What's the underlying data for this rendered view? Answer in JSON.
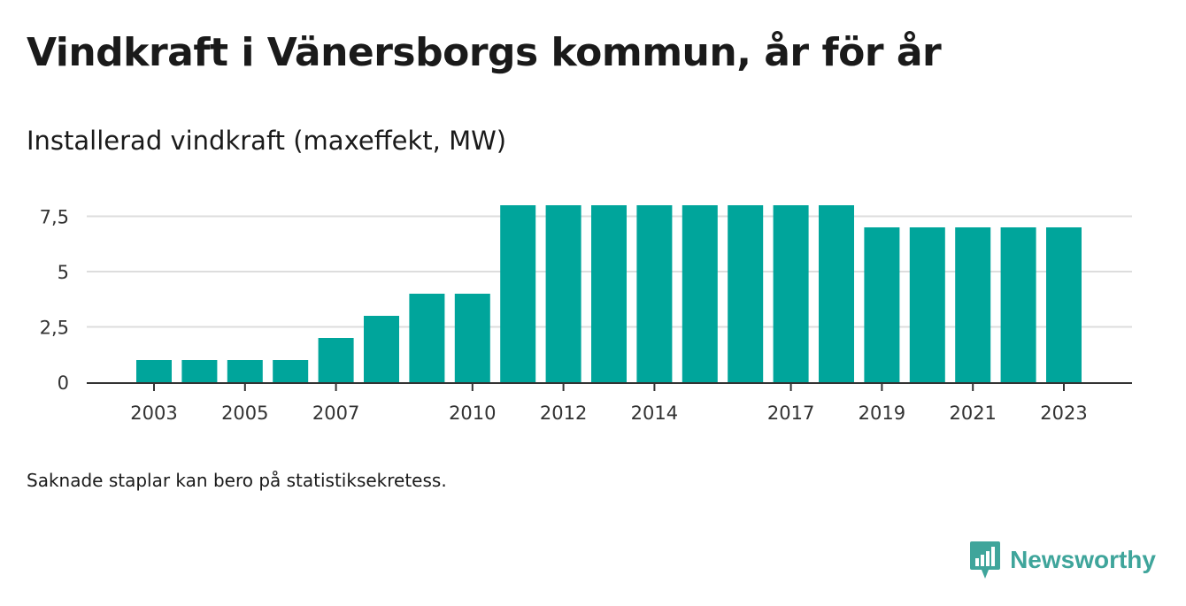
{
  "header": {
    "title": "Vindkraft i Vänersborgs kommun, år för år",
    "subtitle": "Installerad vindkraft (maxeffekt, MW)"
  },
  "footer": {
    "note": "Saknade staplar kan bero på statistiksekretess.",
    "brand": "Newsworthy"
  },
  "colors": {
    "bar": "#00a59b",
    "grid": "#dddddd",
    "axis": "#333333",
    "brand": "#3fa59b"
  },
  "chart_data": {
    "type": "bar",
    "categories": [
      "2003",
      "2004",
      "2005",
      "2006",
      "2007",
      "2008",
      "2009",
      "2010",
      "2011",
      "2012",
      "2013",
      "2014",
      "2015",
      "2016",
      "2017",
      "2018",
      "2019",
      "2020",
      "2021",
      "2022",
      "2023"
    ],
    "values": [
      1,
      1,
      1,
      1,
      2,
      3,
      4,
      4,
      8,
      8,
      8,
      8,
      8,
      8,
      8,
      8,
      7,
      7,
      7,
      7,
      7
    ],
    "x_tick_labels": [
      "2003",
      "2005",
      "2007",
      "2010",
      "2012",
      "2014",
      "2017",
      "2019",
      "2021",
      "2023"
    ],
    "y_ticks": [
      0,
      2.5,
      5,
      7.5
    ],
    "y_tick_labels": [
      "0",
      "2,5",
      "5",
      "7,5"
    ],
    "ylim": [
      0,
      8
    ],
    "grid": true,
    "xlabel": "",
    "ylabel": ""
  }
}
